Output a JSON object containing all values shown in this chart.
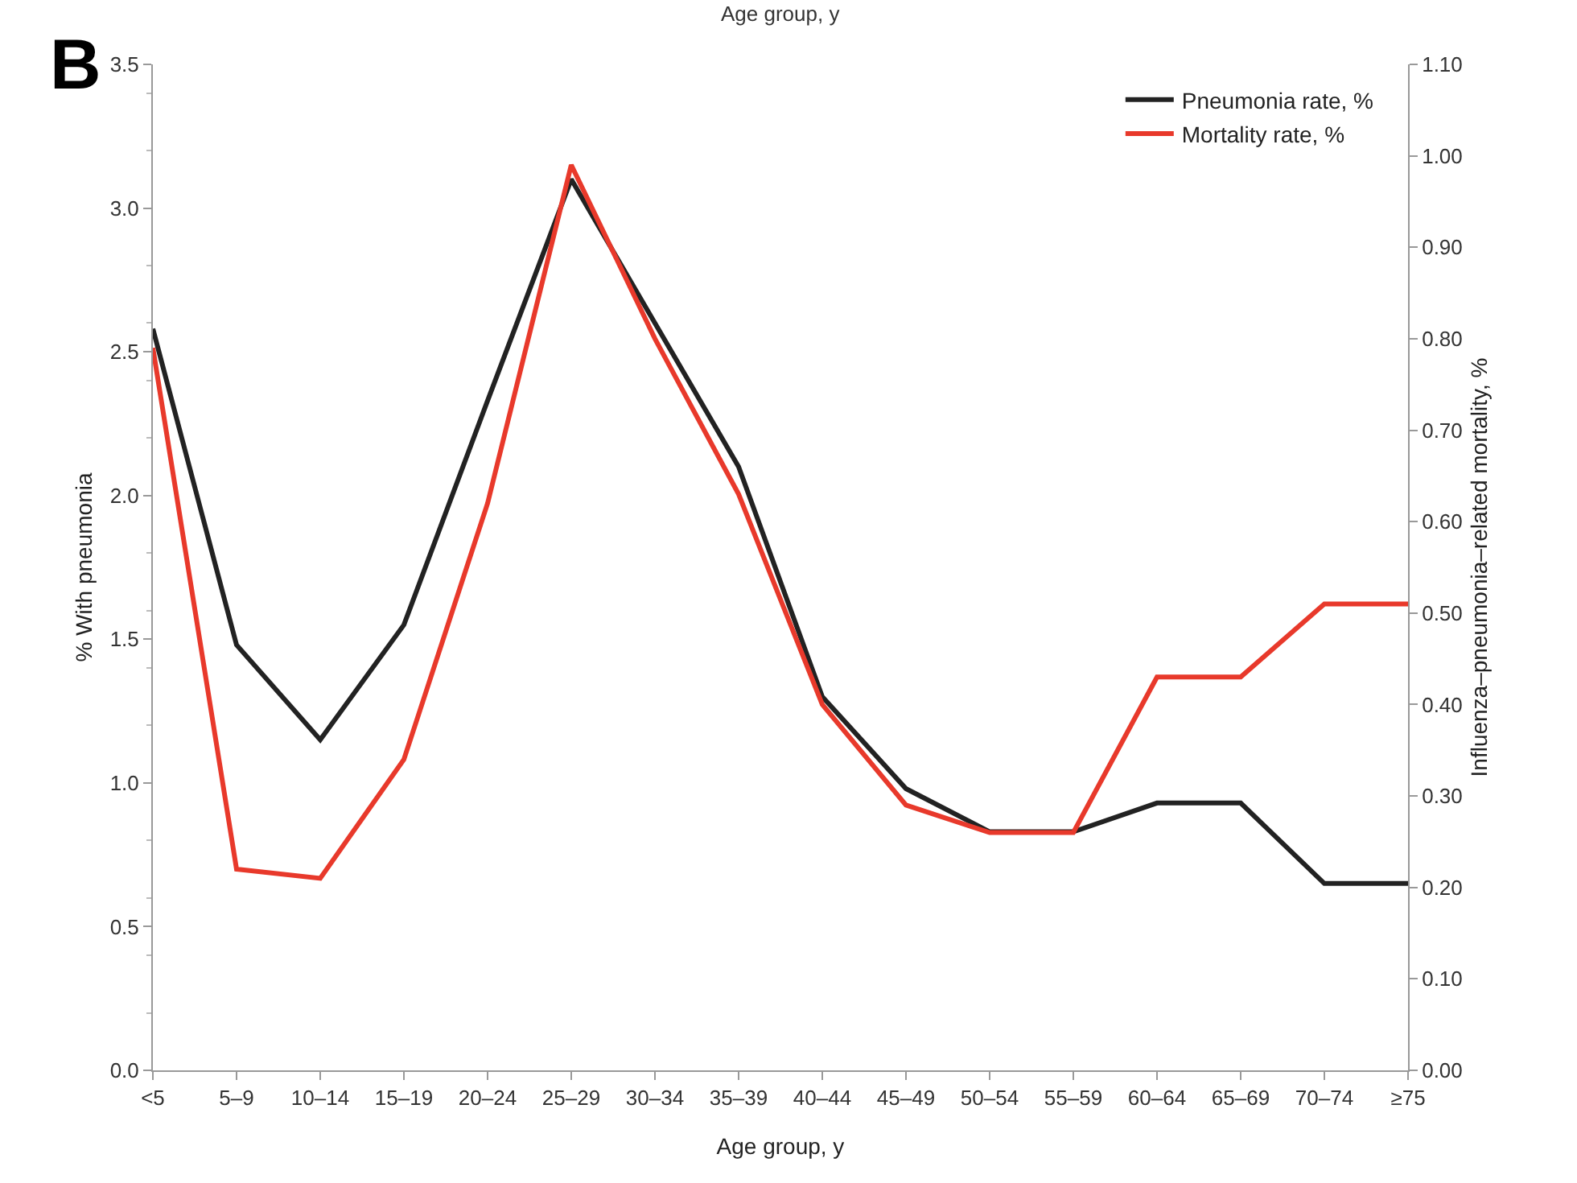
{
  "chart_data": {
    "type": "line",
    "xlabel": "Age group, y",
    "ylabel": "% With pneumonia",
    "y2label": "Influenza–pneumonia–related mortality, %",
    "annotations": [
      "B",
      "Age group, y"
    ],
    "categories": [
      "<5",
      "5–9",
      "10–14",
      "15–19",
      "20–24",
      "25–29",
      "30–34",
      "35–39",
      "40–44",
      "45–49",
      "50–54",
      "55–59",
      "60–64",
      "65–69",
      "70–74",
      "≥75"
    ],
    "series": [
      {
        "name": "Pneumonia rate, %",
        "color": "#222222",
        "values": [
          2.58,
          1.48,
          1.15,
          1.55,
          2.33,
          3.1,
          2.6,
          2.1,
          1.3,
          0.98,
          0.83,
          0.83,
          0.93,
          0.93,
          0.65,
          0.65
        ]
      },
      {
        "name": "Mortality rate, %",
        "color": "#e8392b",
        "axis": "y2",
        "values": [
          0.79,
          0.22,
          0.21,
          0.34,
          0.62,
          0.99,
          0.8,
          0.63,
          0.4,
          0.29,
          0.26,
          0.26,
          0.43,
          0.43,
          0.51,
          0.51
        ]
      }
    ],
    "ylim": [
      0,
      3.5
    ],
    "yticks": [
      {
        "value": 0,
        "label": "0.0"
      },
      0.5,
      {
        "value": 1,
        "label": "1.0"
      },
      1.5,
      {
        "value": 2,
        "label": "2.0"
      },
      2.5,
      {
        "value": 3,
        "label": "3.0"
      },
      3.5
    ],
    "y2lim": [
      0,
      1.1
    ],
    "y2ticks": [
      {
        "value": 0,
        "label": "0.00"
      },
      {
        "value": 0.1,
        "label": "0.10"
      },
      {
        "value": 0.2,
        "label": "0.20"
      },
      {
        "value": 0.3,
        "label": "0.30"
      },
      {
        "value": 0.4,
        "label": "0.40"
      },
      {
        "value": 0.5,
        "label": "0.50"
      },
      {
        "value": 0.6,
        "label": "0.60"
      },
      {
        "value": 0.7,
        "label": "0.70"
      },
      {
        "value": 0.8,
        "label": "0.80"
      },
      {
        "value": 0.9,
        "label": "0.90"
      },
      {
        "value": 1,
        "label": "1.00"
      },
      {
        "value": 1.1,
        "label": "1.10"
      }
    ],
    "grid": false,
    "legend": "top right",
    "marker": "none",
    "line_style": "solid"
  }
}
